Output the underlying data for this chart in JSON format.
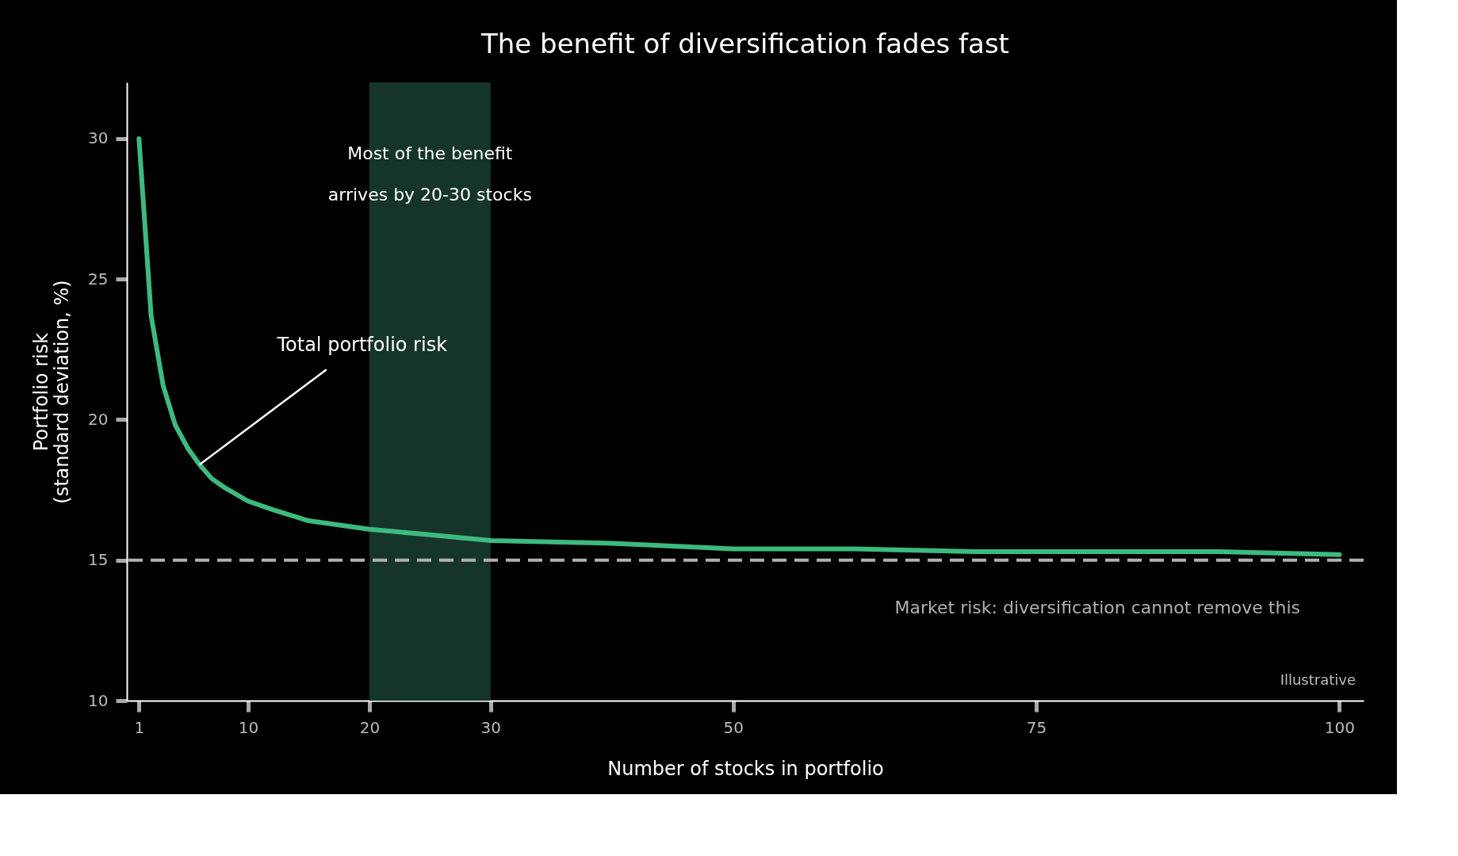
{
  "chart_data": {
    "type": "line",
    "title": "The benefit of diversification fades fast",
    "xlabel": "Number of stocks in portfolio",
    "ylabel": "Portfolio risk\n(standard deviation, %)",
    "x": [
      1,
      2,
      3,
      4,
      5,
      6,
      7,
      8,
      10,
      12,
      15,
      20,
      25,
      30,
      40,
      50,
      60,
      70,
      80,
      90,
      100
    ],
    "series": [
      {
        "name": null,
        "color": "#3dba7e",
        "values": [
          30,
          23.7,
          21.2,
          19.8,
          19.0,
          18.4,
          17.9,
          17.6,
          17.1,
          16.8,
          16.4,
          16.1,
          15.9,
          15.7,
          15.6,
          15.4,
          15.4,
          15.3,
          15.3,
          15.3,
          15.2
        ]
      }
    ],
    "xlim": [
      0,
      102
    ],
    "ylim": [
      10,
      32
    ],
    "xticks": [
      1,
      10,
      20,
      30,
      50,
      75,
      100
    ],
    "yticks": [
      10,
      15,
      20,
      25,
      30
    ],
    "grid": false,
    "marker": "none",
    "line_style": "solid",
    "ref_lines": [
      {
        "axis": "y",
        "value": 15,
        "label": "Market risk: diversification cannot remove this",
        "color": "#b0b0b0",
        "line_style": "dashed"
      }
    ],
    "bands": [
      {
        "axis": "x",
        "from": 20,
        "to": 30,
        "label": "Most of the benefit\narrives by 20-30 stocks",
        "color": "#16352a"
      }
    ],
    "annotations": [
      {
        "text": "Total portfolio risk",
        "x": 6,
        "y": 18.4
      },
      "Illustrative"
    ]
  }
}
